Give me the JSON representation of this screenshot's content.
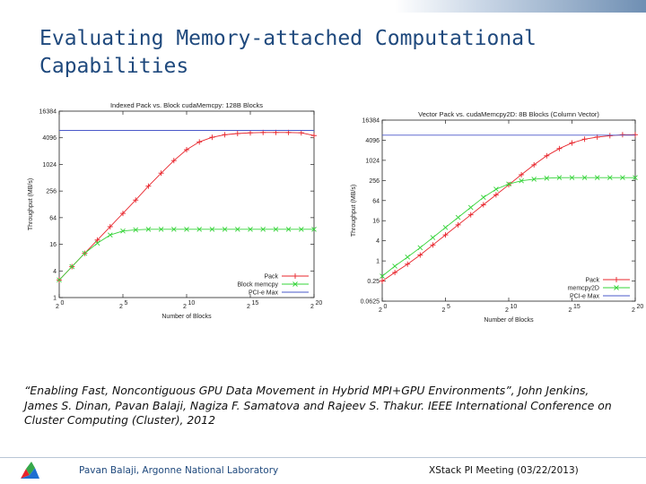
{
  "slide": {
    "title": "Evaluating Memory-attached Computational Capabilities",
    "citation": "“Enabling Fast, Noncontiguous GPU Data Movement in Hybrid MPI+GPU Environments”, John Jenkins, James S. Dinan, Pavan Balaji, Nagiza F. Samatova and Rajeev S. Thakur. IEEE International Conference on Cluster Computing (Cluster), 2012",
    "footer_left": "Pavan Balaji, Argonne National Laboratory",
    "footer_right": "XStack PI Meeting (03/22/2013)"
  },
  "colors": {
    "title": "#1f497d",
    "pack": "#e8242b",
    "memcpy": "#36d43a",
    "pcie": "#4a58c9",
    "logo": [
      "#e8242b",
      "#36a84a",
      "#1f6fd1"
    ]
  },
  "chart_data": [
    {
      "type": "line",
      "title": "Indexed Pack vs. Block cudaMemcpy: 128B Blocks",
      "xlabel": "Number of Blocks",
      "ylabel": "Throughput (MB/s)",
      "x_scale": "log2",
      "y_scale": "log",
      "xlim": [
        1,
        1048576
      ],
      "ylim": [
        1,
        16384
      ],
      "x_ticks": [
        1,
        32,
        1024,
        32768,
        1048576
      ],
      "x_tick_labels": [
        [
          "2",
          "0"
        ],
        [
          "2",
          "5"
        ],
        [
          "2",
          "10"
        ],
        [
          "2",
          "15"
        ],
        [
          "2",
          "20"
        ]
      ],
      "y_ticks": [
        1,
        4,
        16,
        64,
        256,
        1024,
        4096,
        16384
      ],
      "y_tick_labels": [
        "1",
        "4",
        "16",
        "64",
        "256",
        "1024",
        "4096",
        "16384"
      ],
      "legend_position": "bottom-right",
      "x": [
        1,
        2,
        4,
        8,
        16,
        32,
        64,
        128,
        256,
        512,
        1024,
        2048,
        4096,
        8192,
        16384,
        32768,
        65536,
        131072,
        262144,
        524288,
        1048576
      ],
      "series": [
        {
          "name": "Pack",
          "marker": "+",
          "values": [
            2.5,
            5,
            10,
            20,
            40,
            80,
            160,
            330,
            650,
            1250,
            2200,
            3300,
            4200,
            4800,
            5100,
            5300,
            5400,
            5400,
            5400,
            5300,
            4600
          ]
        },
        {
          "name": "Block memcpy",
          "marker": "x",
          "values": [
            2.5,
            5,
            10,
            17,
            26,
            32,
            34,
            35,
            35,
            35,
            35,
            35,
            35,
            35,
            35,
            35,
            35,
            35,
            35,
            35,
            35
          ]
        },
        {
          "name": "PCI-e Max",
          "marker": "none",
          "values": [
            6000,
            6000,
            6000,
            6000,
            6000,
            6000,
            6000,
            6000,
            6000,
            6000,
            6000,
            6000,
            6000,
            6000,
            6000,
            6000,
            6000,
            6000,
            6000,
            6000,
            6000
          ]
        }
      ]
    },
    {
      "type": "line",
      "title": "Vector Pack vs. cudaMemcpy2D: 8B Blocks (Column Vector)",
      "xlabel": "Number of Blocks",
      "ylabel": "Throughput (MB/s)",
      "x_scale": "log2",
      "y_scale": "log",
      "xlim": [
        1,
        1048576
      ],
      "ylim": [
        0.0625,
        16384
      ],
      "x_ticks": [
        1,
        32,
        1024,
        32768,
        1048576
      ],
      "x_tick_labels": [
        [
          "2",
          "0"
        ],
        [
          "2",
          "5"
        ],
        [
          "2",
          "10"
        ],
        [
          "2",
          "15"
        ],
        [
          "2",
          "20"
        ]
      ],
      "y_ticks": [
        0.0625,
        0.25,
        1,
        4,
        16,
        64,
        256,
        1024,
        4096,
        16384
      ],
      "y_tick_labels": [
        "0.0625",
        "0.25",
        "1",
        "4",
        "16",
        "64",
        "256",
        "1024",
        "4096",
        "16384"
      ],
      "legend_position": "bottom-right",
      "x": [
        1,
        2,
        4,
        8,
        16,
        32,
        64,
        128,
        256,
        512,
        1024,
        2048,
        4096,
        8192,
        16384,
        32768,
        65536,
        131072,
        262144,
        524288,
        1048576
      ],
      "series": [
        {
          "name": "Pack",
          "marker": "+",
          "values": [
            0.25,
            0.45,
            0.8,
            1.5,
            3,
            6,
            12,
            24,
            48,
            95,
            190,
            380,
            750,
            1400,
            2300,
            3400,
            4400,
            5100,
            5600,
            6000,
            6000
          ]
        },
        {
          "name": "memcpy2D",
          "marker": "x",
          "values": [
            0.35,
            0.7,
            1.3,
            2.5,
            5,
            10,
            20,
            40,
            80,
            140,
            200,
            250,
            280,
            300,
            310,
            310,
            310,
            310,
            310,
            310,
            310
          ]
        },
        {
          "name": "PCI-e Max",
          "marker": "none",
          "values": [
            5800,
            5800,
            5800,
            5800,
            5800,
            5800,
            5800,
            5800,
            5800,
            5800,
            5800,
            5800,
            5800,
            5800,
            5800,
            5800,
            5800,
            5800,
            5800,
            5800,
            5800
          ]
        }
      ]
    }
  ]
}
